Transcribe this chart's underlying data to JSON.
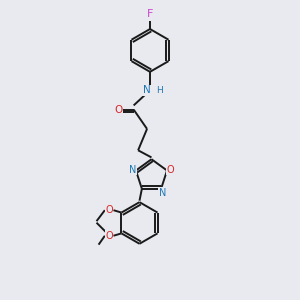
{
  "bg_color": "#e8eaf0",
  "bond_color": "#1a1a1a",
  "atom_colors": {
    "F": "#cc44cc",
    "N": "#1f77b4",
    "O": "#d62728",
    "C": "#1a1a1a"
  },
  "font_size_atom": 7.5,
  "line_width": 1.4
}
